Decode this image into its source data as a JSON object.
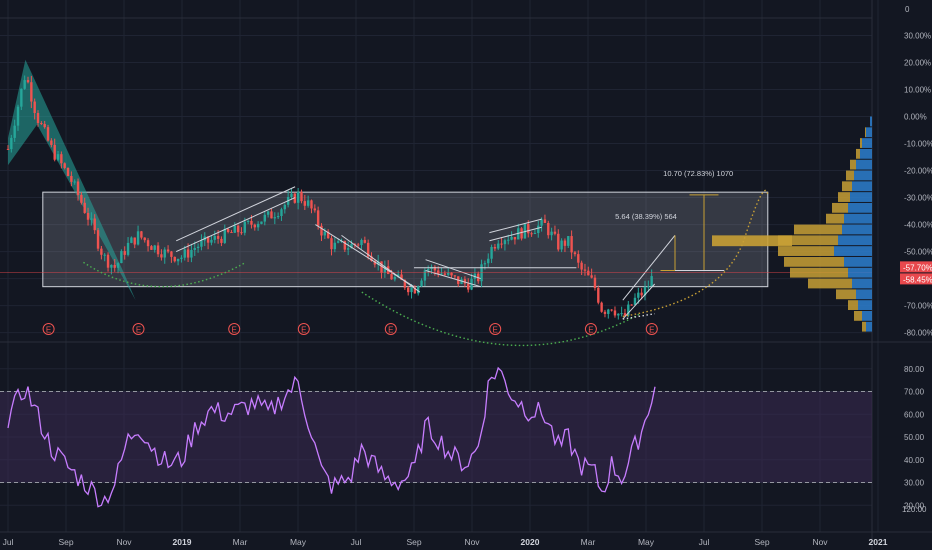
{
  "colors": {
    "background": "#131722",
    "grid": "#1f2433",
    "candle_up": "#26a69a",
    "candle_down": "#ef5350",
    "range_box": "#b2b5be",
    "flag_band": "#26a69a",
    "rsi_line": "#c77dff",
    "rsi_band": "#3a2a52",
    "volume_up": "#2d7fcf",
    "volume_down": "#c8a035",
    "arc": "#4caf50",
    "projection": "#c8a035",
    "price_tag_red": "#e8484d"
  },
  "chart_data": [
    {
      "type": "candlestick",
      "name": "price",
      "yscale": "percent",
      "ylim": [
        -82,
        35
      ],
      "y_ticks": [
        "30.00%",
        "20.00%",
        "10.00%",
        "0.00%",
        "-10.00%",
        "-20.00%",
        "-30.00%",
        "-40.00%",
        "-50.00%",
        "-60.00%",
        "-70.00%",
        "-80.00%"
      ],
      "y_tick_values": [
        30,
        20,
        10,
        0,
        -10,
        -20,
        -30,
        -40,
        -50,
        -60,
        -70,
        -80
      ],
      "top_label": "0",
      "x_ticks": [
        "Jul",
        "Sep",
        "Nov",
        "2019",
        "Mar",
        "May",
        "Jul",
        "Sep",
        "Nov",
        "2020",
        "Mar",
        "May",
        "Jul",
        "Sep",
        "Nov",
        "2021"
      ],
      "x_tick_months": [
        0,
        2,
        4,
        6,
        8,
        10,
        12,
        14,
        16,
        18,
        20,
        22,
        24,
        26,
        28,
        30
      ],
      "x_tick_bold": [
        false,
        false,
        false,
        true,
        false,
        false,
        false,
        false,
        false,
        true,
        false,
        false,
        false,
        false,
        false,
        true
      ],
      "path": [
        {
          "m": 0,
          "v": -12
        },
        {
          "m": 0.6,
          "v": 16
        },
        {
          "m": 1.0,
          "v": 0
        },
        {
          "m": 1.5,
          "v": -12
        },
        {
          "m": 2.2,
          "v": -24
        },
        {
          "m": 2.8,
          "v": -38
        },
        {
          "m": 3.3,
          "v": -52
        },
        {
          "m": 3.7,
          "v": -56
        },
        {
          "m": 4.1,
          "v": -48
        },
        {
          "m": 4.5,
          "v": -44
        },
        {
          "m": 5.0,
          "v": -48
        },
        {
          "m": 5.5,
          "v": -51
        },
        {
          "m": 6.0,
          "v": -52
        },
        {
          "m": 6.5,
          "v": -48
        },
        {
          "m": 7.0,
          "v": -46
        },
        {
          "m": 7.5,
          "v": -44
        },
        {
          "m": 8.0,
          "v": -42
        },
        {
          "m": 8.5,
          "v": -39
        },
        {
          "m": 9.0,
          "v": -37
        },
        {
          "m": 9.5,
          "v": -33
        },
        {
          "m": 10.0,
          "v": -29
        },
        {
          "m": 10.4,
          "v": -33
        },
        {
          "m": 10.8,
          "v": -42
        },
        {
          "m": 11.2,
          "v": -48
        },
        {
          "m": 11.8,
          "v": -48
        },
        {
          "m": 12.2,
          "v": -46
        },
        {
          "m": 12.6,
          "v": -52
        },
        {
          "m": 13.0,
          "v": -58
        },
        {
          "m": 13.5,
          "v": -61
        },
        {
          "m": 14.0,
          "v": -64
        },
        {
          "m": 14.4,
          "v": -56
        },
        {
          "m": 14.8,
          "v": -57
        },
        {
          "m": 15.3,
          "v": -60
        },
        {
          "m": 15.8,
          "v": -62
        },
        {
          "m": 16.2,
          "v": -60
        },
        {
          "m": 16.6,
          "v": -50
        },
        {
          "m": 16.9,
          "v": -45
        },
        {
          "m": 17.4,
          "v": -44
        },
        {
          "m": 17.9,
          "v": -42
        },
        {
          "m": 18.5,
          "v": -40
        },
        {
          "m": 19.0,
          "v": -48
        },
        {
          "m": 19.3,
          "v": -46
        },
        {
          "m": 19.7,
          "v": -56
        },
        {
          "m": 20.2,
          "v": -62
        },
        {
          "m": 20.5,
          "v": -72
        },
        {
          "m": 20.8,
          "v": -70
        },
        {
          "m": 21.2,
          "v": -75
        },
        {
          "m": 21.6,
          "v": -68
        },
        {
          "m": 22.0,
          "v": -64
        },
        {
          "m": 22.3,
          "v": -58
        }
      ],
      "price_tags": [
        {
          "label": "-57.70%",
          "value": -57.7
        },
        {
          "label": "-58.45%",
          "value": -58.45
        }
      ],
      "earnings_markers": {
        "label": "E",
        "months": [
          1.4,
          4.5,
          7.8,
          10.2,
          13.2,
          16.8,
          20.1,
          22.2
        ]
      },
      "range_box": {
        "top": -28,
        "bottom": -63,
        "from_month": 1.2,
        "to_month": 26.2
      },
      "annotations": [
        {
          "text": "10.70 (72.83%) 1070",
          "month": 23.8,
          "value": -22
        },
        {
          "text": "5.64 (38.39%) 564",
          "month": 22.0,
          "value": -38
        }
      ]
    },
    {
      "type": "line",
      "name": "rsi",
      "ylim": [
        10,
        90
      ],
      "y_ticks": [
        "80.00",
        "70.00",
        "60.00",
        "50.00",
        "40.00",
        "30.00",
        "20.00"
      ],
      "y_tick_values": [
        80,
        70,
        60,
        50,
        40,
        30,
        20
      ],
      "band": [
        30,
        70
      ],
      "extra_tick": {
        "label": "120.00"
      },
      "path": [
        {
          "m": 0,
          "v": 58
        },
        {
          "m": 0.6,
          "v": 72
        },
        {
          "m": 1.0,
          "v": 60
        },
        {
          "m": 1.5,
          "v": 45
        },
        {
          "m": 2.2,
          "v": 35
        },
        {
          "m": 2.8,
          "v": 28
        },
        {
          "m": 3.3,
          "v": 22
        },
        {
          "m": 3.7,
          "v": 30
        },
        {
          "m": 4.1,
          "v": 48
        },
        {
          "m": 4.5,
          "v": 55
        },
        {
          "m": 5.0,
          "v": 45
        },
        {
          "m": 5.5,
          "v": 38
        },
        {
          "m": 6.0,
          "v": 40
        },
        {
          "m": 6.5,
          "v": 55
        },
        {
          "m": 7.0,
          "v": 62
        },
        {
          "m": 7.5,
          "v": 60
        },
        {
          "m": 8.0,
          "v": 62
        },
        {
          "m": 8.5,
          "v": 65
        },
        {
          "m": 9.0,
          "v": 60
        },
        {
          "m": 9.5,
          "v": 68
        },
        {
          "m": 10.0,
          "v": 74
        },
        {
          "m": 10.4,
          "v": 55
        },
        {
          "m": 10.8,
          "v": 35
        },
        {
          "m": 11.2,
          "v": 28
        },
        {
          "m": 11.8,
          "v": 32
        },
        {
          "m": 12.2,
          "v": 45
        },
        {
          "m": 12.6,
          "v": 38
        },
        {
          "m": 13.0,
          "v": 32
        },
        {
          "m": 13.5,
          "v": 30
        },
        {
          "m": 14.0,
          "v": 35
        },
        {
          "m": 14.4,
          "v": 55
        },
        {
          "m": 14.8,
          "v": 50
        },
        {
          "m": 15.3,
          "v": 42
        },
        {
          "m": 15.8,
          "v": 38
        },
        {
          "m": 16.2,
          "v": 45
        },
        {
          "m": 16.6,
          "v": 75
        },
        {
          "m": 16.9,
          "v": 80
        },
        {
          "m": 17.4,
          "v": 68
        },
        {
          "m": 17.9,
          "v": 62
        },
        {
          "m": 18.5,
          "v": 60
        },
        {
          "m": 19.0,
          "v": 45
        },
        {
          "m": 19.3,
          "v": 50
        },
        {
          "m": 19.7,
          "v": 38
        },
        {
          "m": 20.2,
          "v": 35
        },
        {
          "m": 20.5,
          "v": 25
        },
        {
          "m": 20.8,
          "v": 38
        },
        {
          "m": 21.2,
          "v": 32
        },
        {
          "m": 21.6,
          "v": 45
        },
        {
          "m": 22.0,
          "v": 58
        },
        {
          "m": 22.3,
          "v": 74
        },
        {
          "m": 22.4,
          "v": 57
        }
      ]
    }
  ]
}
